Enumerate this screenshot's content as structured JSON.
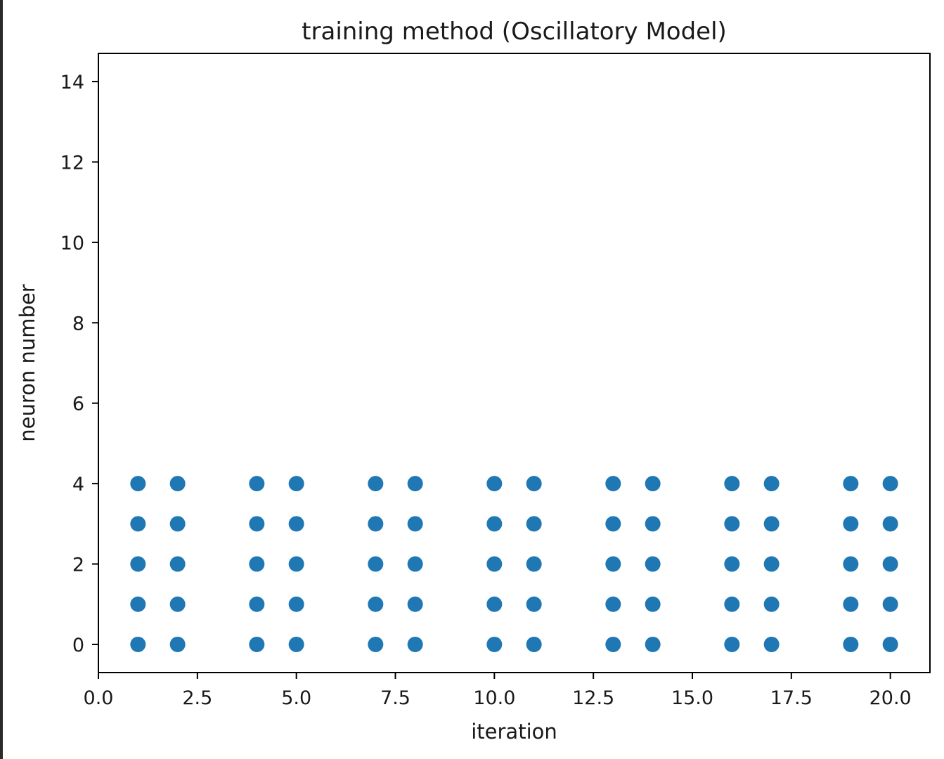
{
  "chart_data": {
    "type": "scatter",
    "title": "training method (Oscillatory Model)",
    "xlabel": "iteration",
    "ylabel": "neuron number",
    "xlim": [
      0.0,
      21.0
    ],
    "ylim": [
      -0.7,
      14.7
    ],
    "xticks": [
      0.0,
      2.5,
      5.0,
      7.5,
      10.0,
      12.5,
      15.0,
      17.5,
      20.0
    ],
    "xtick_labels": [
      "0.0",
      "2.5",
      "5.0",
      "7.5",
      "10.0",
      "12.5",
      "15.0",
      "17.5",
      "20.0"
    ],
    "yticks": [
      0,
      2,
      4,
      6,
      8,
      10,
      12,
      14
    ],
    "ytick_labels": [
      "0",
      "2",
      "4",
      "6",
      "8",
      "10",
      "12",
      "14"
    ],
    "grid": false,
    "marker_color": "#1f77b4",
    "x": [
      1,
      2,
      4,
      5,
      7,
      8,
      10,
      11,
      13,
      14,
      16,
      17,
      19,
      20
    ],
    "y_per_x": [
      0,
      1,
      2,
      3,
      4
    ]
  }
}
